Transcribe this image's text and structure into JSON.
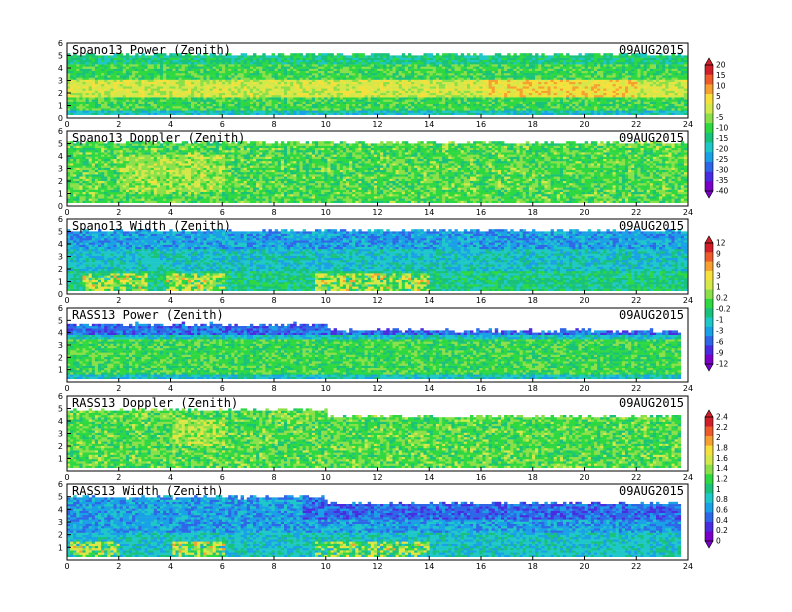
{
  "chart_data": {
    "type": "heatmap",
    "panels": [
      {
        "title": "Spano13 Power (Zenith)",
        "date": "09AUG2015",
        "colorbar": 0,
        "x_ticks": [
          "0",
          "2",
          "4",
          "6",
          "8",
          "10",
          "12",
          "14",
          "16",
          "18",
          "20",
          "22",
          "24"
        ],
        "y_ticks": [
          "0",
          "1",
          "2",
          "3",
          "4",
          "5",
          "6"
        ]
      },
      {
        "title": "Spano13 Doppler (Zenith)",
        "date": "09AUG2015",
        "colorbar": 0,
        "x_ticks": [
          "0",
          "2",
          "4",
          "6",
          "8",
          "10",
          "12",
          "14",
          "16",
          "18",
          "20",
          "22",
          "24"
        ],
        "y_ticks": [
          "0",
          "1",
          "2",
          "3",
          "4",
          "5",
          "6"
        ]
      },
      {
        "title": "Spano13 Width (Zenith)",
        "date": "09AUG2015",
        "colorbar": 1,
        "x_ticks": [
          "0",
          "2",
          "4",
          "6",
          "8",
          "10",
          "12",
          "14",
          "16",
          "18",
          "20",
          "22",
          "24"
        ],
        "y_ticks": [
          "0",
          "1",
          "2",
          "3",
          "4",
          "5",
          "6"
        ]
      },
      {
        "title": "RASS13 Power (Zenith)",
        "date": "09AUG2015",
        "colorbar": 1,
        "x_ticks": [
          "0",
          "2",
          "4",
          "6",
          "8",
          "10",
          "12",
          "14",
          "16",
          "18",
          "20",
          "22",
          "24"
        ],
        "y_ticks": [
          "1",
          "2",
          "3",
          "4",
          "5",
          "6"
        ]
      },
      {
        "title": "RASS13 Doppler (Zenith)",
        "date": "09AUG2015",
        "colorbar": 2,
        "x_ticks": [
          "0",
          "2",
          "4",
          "6",
          "8",
          "10",
          "12",
          "14",
          "16",
          "18",
          "20",
          "22",
          "24"
        ],
        "y_ticks": [
          "1",
          "2",
          "3",
          "4",
          "5",
          "6"
        ]
      },
      {
        "title": "RASS13 Width (Zenith)",
        "date": "09AUG2015",
        "colorbar": 2,
        "x_ticks": [
          "0",
          "2",
          "4",
          "6",
          "8",
          "10",
          "12",
          "14",
          "16",
          "18",
          "20",
          "22",
          "24"
        ],
        "y_ticks": [
          "1",
          "2",
          "3",
          "4",
          "5",
          "6"
        ]
      }
    ],
    "x_range": [
      0,
      24
    ],
    "y_range": [
      0,
      6
    ],
    "colorbars": [
      {
        "labels": [
          "20",
          "15",
          "10",
          "5",
          "0",
          "-5",
          "-10",
          "-15",
          "-20",
          "-25",
          "-30",
          "-35",
          "-40"
        ]
      },
      {
        "labels": [
          "12",
          "9",
          "6",
          "3",
          "1",
          "0.2",
          "-0.2",
          "-1",
          "-3",
          "-6",
          "-9",
          "-12"
        ]
      },
      {
        "labels": [
          "2.4",
          "2.2",
          "2",
          "1.8",
          "1.6",
          "1.4",
          "1.2",
          "1",
          "0.8",
          "0.6",
          "0.4",
          "0.2",
          "0"
        ]
      }
    ],
    "colormap": [
      "#7a00c8",
      "#4a2ce0",
      "#2e66e8",
      "#1aa0e6",
      "#1ec8c8",
      "#19c27a",
      "#2ed840",
      "#8be04a",
      "#d4e84a",
      "#f5e03c",
      "#f5a030",
      "#ee5a2a",
      "#d21e28"
    ]
  }
}
